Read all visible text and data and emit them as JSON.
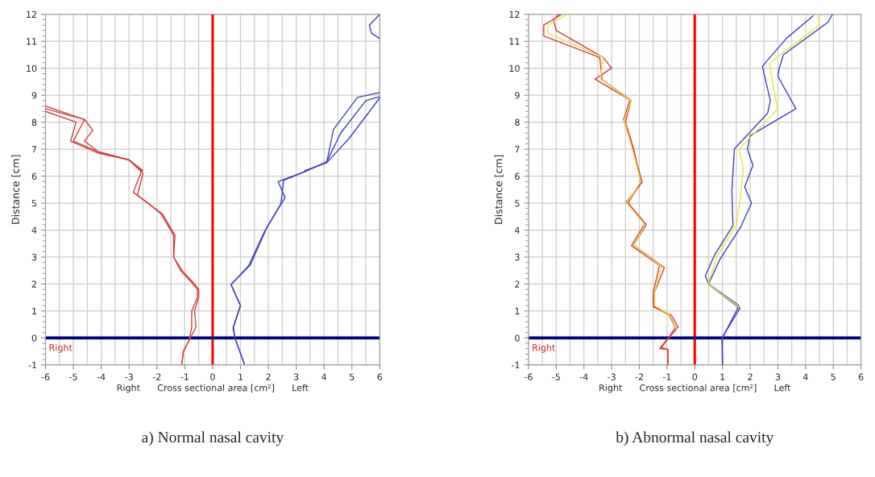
{
  "chart_data": [
    {
      "type": "line",
      "title": "a) Normal nasal cavity",
      "xlabel": "Right      Cross sectional area [cm²]      Left",
      "ylabel": "Distance [cm]",
      "xlim": [
        -6,
        6
      ],
      "ylim": [
        -1,
        12
      ],
      "xticks": [
        -6,
        -5,
        -4,
        -3,
        -2,
        -1,
        0,
        1,
        2,
        3,
        4,
        5,
        6
      ],
      "yticks": [
        -1,
        0,
        1,
        2,
        3,
        4,
        5,
        6,
        7,
        8,
        9,
        10,
        11,
        12
      ],
      "grid": true,
      "annotations": [
        "Right"
      ],
      "ref_lines": [
        {
          "axis": "x",
          "value": 0,
          "color": "#ff0000"
        },
        {
          "axis": "y",
          "value": 0,
          "color": "#000080"
        }
      ],
      "series": [
        {
          "color": "#d04040",
          "x": [
            -1.1,
            -1.05,
            -0.85,
            -0.6,
            -0.65,
            -0.5,
            -0.5,
            -0.65,
            -1.1,
            -1.4,
            -1.35,
            -1.8,
            -2.2,
            -2.85,
            -2.55,
            -3.0,
            -4.1,
            -5.0,
            -4.6,
            -6.0
          ],
          "values": [
            -0.95,
            -0.5,
            -0.1,
            0.4,
            1.0,
            1.5,
            1.8,
            2.0,
            2.5,
            3.0,
            3.8,
            4.6,
            4.9,
            5.4,
            6.2,
            6.6,
            6.9,
            7.3,
            8.1,
            8.6
          ]
        },
        {
          "color": "#d04040",
          "x": [
            -1.1,
            -1.05,
            -0.85,
            -0.75,
            -0.75,
            -0.55,
            -0.55,
            -0.7,
            -1.15,
            -1.4,
            -1.4,
            -1.85,
            -2.2,
            -2.7,
            -2.5,
            -3.0,
            -4.1,
            -4.6,
            -4.3,
            -4.6,
            -6.0
          ],
          "values": [
            -0.95,
            -0.5,
            -0.1,
            0.4,
            1.0,
            1.5,
            1.8,
            2.0,
            2.5,
            3.0,
            3.8,
            4.6,
            4.9,
            5.3,
            6.1,
            6.6,
            6.9,
            7.3,
            7.7,
            8.1,
            8.5
          ]
        },
        {
          "color": "#d04040",
          "x": [
            -2.5,
            -3.0,
            -4.1,
            -5.1,
            -4.9,
            -6.0
          ],
          "values": [
            6.2,
            6.6,
            6.85,
            7.3,
            8.0,
            8.4
          ]
        },
        {
          "color": "#4040c0",
          "x": [
            1.14,
            0.8,
            0.73,
            1.0,
            0.66,
            1.29,
            1.87,
            2.45,
            2.55,
            3.3,
            4.1,
            4.34,
            5.2,
            6.0
          ],
          "values": [
            -0.97,
            0,
            0.37,
            1.2,
            1.98,
            2.67,
            3.96,
            4.97,
            5.84,
            6.16,
            6.53,
            7.73,
            8.92,
            9.1
          ]
        },
        {
          "color": "#4040c0",
          "x": [
            1.14,
            0.8,
            0.75,
            1.0,
            0.66,
            1.35,
            1.95,
            2.6,
            2.35,
            3.3,
            4.1,
            4.6,
            5.5,
            6.0
          ],
          "values": [
            -0.97,
            0,
            0.4,
            1.2,
            1.98,
            2.7,
            4.1,
            5.2,
            5.8,
            6.16,
            6.53,
            7.6,
            8.8,
            8.95
          ]
        },
        {
          "color": "#4040c0",
          "x": [
            3.3,
            4.1,
            4.9,
            6.0
          ],
          "values": [
            6.2,
            6.5,
            7.4,
            8.9
          ]
        },
        {
          "color": "#4040c0",
          "x": [
            6.0,
            5.63,
            5.7,
            6.0
          ],
          "values": [
            12.0,
            11.6,
            11.3,
            11.1
          ]
        }
      ]
    },
    {
      "type": "line",
      "title": "b) Abnormal nasal cavity",
      "xlabel": "Right      Cross sectional area [cm²]      Left",
      "ylabel": "Distance [cm]",
      "xlim": [
        -6,
        6
      ],
      "ylim": [
        -1,
        12
      ],
      "xticks": [
        -6,
        -5,
        -4,
        -3,
        -2,
        -1,
        0,
        1,
        2,
        3,
        4,
        5,
        6
      ],
      "yticks": [
        -1,
        0,
        1,
        2,
        3,
        4,
        5,
        6,
        7,
        8,
        9,
        10,
        11,
        12
      ],
      "grid": true,
      "annotations": [
        "Right"
      ],
      "ref_lines": [
        {
          "axis": "x",
          "value": 0,
          "color": "#ff0000"
        },
        {
          "axis": "y",
          "value": 0,
          "color": "#000080"
        }
      ],
      "series": [
        {
          "color": "#d04040",
          "x": [
            -0.97,
            -0.97,
            -1.27,
            -0.93,
            -0.69,
            -0.93,
            -1.5,
            -1.5,
            -1.27,
            -2.28,
            -1.8,
            -2.47,
            -1.9,
            -2.23,
            -2.57,
            -2.33,
            -3.34,
            -3.43,
            -5.45,
            -5.45,
            -4.8
          ],
          "values": [
            -1,
            -0.43,
            -0.39,
            0.03,
            0.39,
            0.85,
            1.18,
            1.68,
            2.69,
            3.42,
            4.25,
            5.03,
            5.77,
            7.01,
            8.1,
            8.84,
            9.57,
            10.4,
            11.2,
            11.6,
            12.0
          ]
        },
        {
          "color": "#d04040",
          "x": [
            -0.97,
            -0.97,
            -1.2,
            -0.9,
            -0.6,
            -0.85,
            -1.5,
            -1.45,
            -1.1,
            -2.2,
            -1.75,
            -2.4,
            -1.95,
            -2.2,
            -2.5,
            -2.3,
            -3.6,
            -3.0,
            -3.3,
            -5.0,
            -5.1,
            -4.9
          ],
          "values": [
            -1,
            -0.43,
            -0.35,
            0.05,
            0.4,
            0.85,
            1.15,
            1.7,
            2.6,
            3.45,
            4.2,
            5.0,
            5.8,
            7.0,
            8.0,
            8.8,
            9.6,
            10.0,
            10.4,
            11.4,
            11.8,
            12.0
          ]
        },
        {
          "color": "#f0e040",
          "x": [
            -0.65,
            -0.9,
            -1.45,
            -1.45,
            -1.2,
            -2.2,
            -1.8,
            -2.45,
            -1.95,
            -2.25,
            -2.55,
            -2.3,
            -3.4,
            -3.3,
            -5.3,
            -5.3,
            -4.6
          ],
          "values": [
            0.35,
            0.85,
            1.2,
            1.7,
            2.65,
            3.45,
            4.2,
            5.0,
            5.8,
            7.0,
            8.05,
            8.8,
            9.6,
            10.4,
            11.3,
            11.6,
            12.0
          ]
        },
        {
          "color": "#4040c0",
          "x": [
            1.0,
            0.98,
            1.63,
            0.52,
            0.38,
            0.71,
            1.38,
            1.34,
            1.43,
            2.63,
            2.73,
            2.44,
            3.3,
            4.27
          ],
          "values": [
            -1,
            0,
            1.1,
            1.96,
            2.3,
            3.06,
            4.17,
            5.46,
            7.01,
            8.33,
            8.79,
            10.07,
            11.1,
            11.94
          ]
        },
        {
          "color": "#4040c0",
          "x": [
            1.0,
            1.0,
            1.6,
            0.5,
            0.9,
            1.65,
            2.05,
            1.8,
            2.1,
            1.9,
            2.0,
            3.65,
            3.0,
            3.05,
            3.2,
            4.8,
            4.97
          ],
          "values": [
            -1,
            0,
            1.2,
            2.0,
            2.9,
            4.1,
            5.0,
            5.6,
            6.4,
            7.0,
            7.5,
            8.5,
            9.7,
            10.0,
            10.5,
            11.7,
            12.0
          ]
        },
        {
          "color": "#f0e040",
          "x": [
            1.6,
            0.48,
            0.8,
            1.5,
            1.65,
            1.75,
            1.6,
            3.0,
            2.85,
            2.7,
            4.5,
            4.45
          ],
          "values": [
            1.15,
            2.0,
            3.0,
            4.2,
            5.2,
            6.3,
            7.0,
            8.5,
            9.2,
            10.2,
            11.6,
            12.0
          ]
        }
      ]
    }
  ]
}
